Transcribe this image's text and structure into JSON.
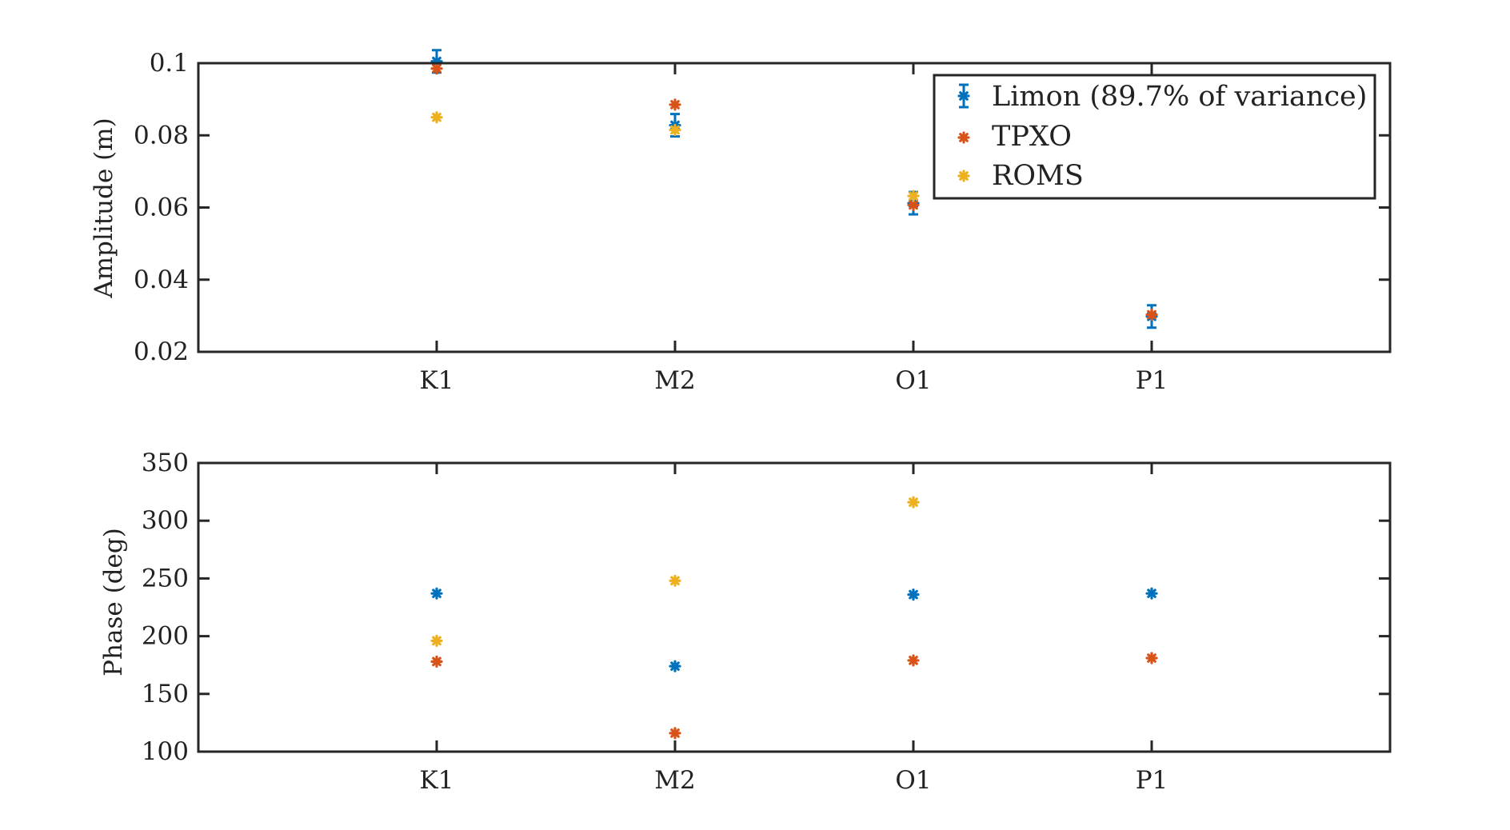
{
  "chart_data": [
    {
      "type": "scatter",
      "ylabel": "Amplitude (m)",
      "categories": [
        "K1",
        "M2",
        "O1",
        "P1"
      ],
      "ylim": [
        0.02,
        0.1
      ],
      "yticks": [
        0.02,
        0.04,
        0.06,
        0.08,
        0.1
      ],
      "ytick_labels": [
        "0.02",
        "0.04",
        "0.06",
        "0.08",
        "0.1"
      ],
      "legend_placement": "top-right",
      "series": [
        {
          "name": "Limon (89.7% of variance)",
          "values": [
            0.1005,
            0.0828,
            0.0612,
            0.0298
          ],
          "color": "#0072BD",
          "error_bars": true
        },
        {
          "name": "TPXO",
          "values": [
            0.0985,
            0.0885,
            0.0607,
            0.0303
          ],
          "color": "#D95319"
        },
        {
          "name": "ROMS",
          "values": [
            0.085,
            0.0815,
            0.0632,
            null
          ],
          "color": "#EDB120"
        }
      ]
    },
    {
      "type": "scatter",
      "ylabel": "Phase (deg)",
      "categories": [
        "K1",
        "M2",
        "O1",
        "P1"
      ],
      "ylim": [
        100,
        350
      ],
      "yticks": [
        100,
        150,
        200,
        250,
        300,
        350
      ],
      "ytick_labels": [
        "100",
        "150",
        "200",
        "250",
        "300",
        "350"
      ],
      "series": [
        {
          "values": [
            237,
            174,
            236,
            237
          ],
          "color": "#0072BD"
        },
        {
          "values": [
            178,
            116,
            179,
            181
          ],
          "color": "#D95319"
        },
        {
          "values": [
            196,
            248,
            316,
            null
          ],
          "color": "#EDB120"
        }
      ]
    }
  ]
}
